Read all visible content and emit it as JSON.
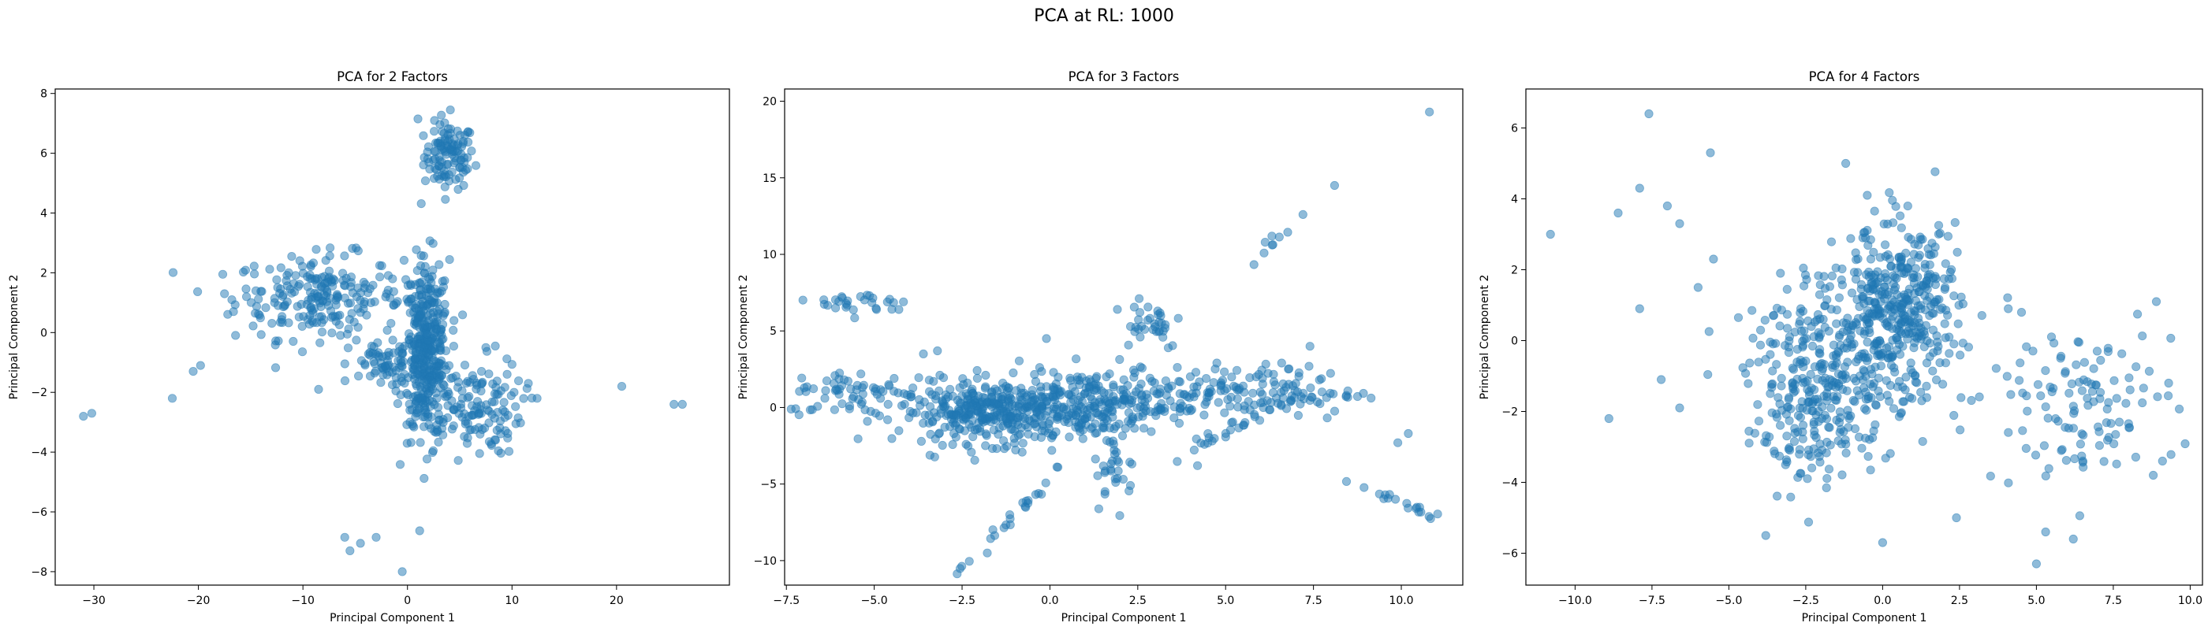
{
  "figure": {
    "suptitle": "PCA at RL: 1000",
    "point_color": "#1f77b4"
  },
  "chart_data": [
    {
      "type": "scatter",
      "title": "PCA for 2 Factors",
      "xlabel": "Principal Component 1",
      "ylabel": "Principal Component 2",
      "xlim": [
        -33.7,
        30.8
      ],
      "ylim": [
        -8.45,
        8.15
      ],
      "xticks": [
        -30,
        -20,
        -10,
        0,
        10,
        20
      ],
      "yticks": [
        -8,
        -6,
        -4,
        -2,
        0,
        2,
        4,
        6,
        8
      ],
      "tick_labels_x": [
        "−30",
        "−20",
        "−10",
        "0",
        "10",
        "20"
      ],
      "tick_labels_y": [
        "−8",
        "−6",
        "−4",
        "−2",
        "0",
        "2",
        "4",
        "6",
        "8"
      ],
      "grid": false,
      "clusters": [
        {
          "cx": 4.0,
          "cy": 5.9,
          "sx": 1.2,
          "sy": 0.55,
          "n": 110
        },
        {
          "cx": -8.5,
          "cy": 1.2,
          "sx": 4.0,
          "sy": 0.7,
          "n": 220
        },
        {
          "cx": 1.8,
          "cy": -0.6,
          "sx": 1.1,
          "sy": 1.5,
          "n": 380
        },
        {
          "cx": 6.0,
          "cy": -2.5,
          "sx": 2.5,
          "sy": 0.8,
          "n": 140
        },
        {
          "cx": -1.5,
          "cy": -1.1,
          "sx": 2.0,
          "sy": 0.4,
          "n": 70
        }
      ],
      "points": [
        [
          -31,
          -2.8
        ],
        [
          -30.2,
          -2.7
        ],
        [
          -22.5,
          -2.2
        ],
        [
          -20.5,
          -1.3
        ],
        [
          -19.8,
          -1.1
        ],
        [
          20.5,
          -1.8
        ],
        [
          25.5,
          -2.4
        ],
        [
          26.3,
          -2.4
        ],
        [
          12.4,
          -2.2
        ],
        [
          10.2,
          -2.0
        ],
        [
          -6,
          -6.85
        ],
        [
          -5.5,
          -7.3
        ],
        [
          -4.5,
          -7.05
        ],
        [
          -3,
          -6.85
        ],
        [
          -0.5,
          -8.0
        ],
        [
          1.0,
          7.15
        ],
        [
          4.1,
          7.45
        ],
        [
          -8.5,
          -1.9
        ],
        [
          7.5,
          -0.5
        ],
        [
          8.4,
          -0.45
        ],
        [
          -17.5,
          1.3
        ],
        [
          -16.8,
          1.1
        ],
        [
          -15.4,
          1.2
        ],
        [
          -14.5,
          1.4
        ]
      ]
    },
    {
      "type": "scatter",
      "title": "PCA for 3 Factors",
      "xlabel": "Principal Component 1",
      "ylabel": "Principal Component 2",
      "xlim": [
        -7.55,
        11.75
      ],
      "ylim": [
        -11.6,
        20.8
      ],
      "xticks": [
        -7.5,
        -5.0,
        -2.5,
        0.0,
        2.5,
        5.0,
        7.5,
        10.0
      ],
      "yticks": [
        -10,
        -5,
        0,
        5,
        10,
        15,
        20
      ],
      "tick_labels_x": [
        "−7.5",
        "−5.0",
        "−2.5",
        "0.0",
        "2.5",
        "5.0",
        "7.5",
        "10.0"
      ],
      "tick_labels_y": [
        "−10",
        "−5",
        "0",
        "5",
        "10",
        "15",
        "20"
      ],
      "grid": false,
      "clusters": [
        {
          "cx": -1.5,
          "cy": -0.3,
          "sx": 1.4,
          "sy": 1.0,
          "n": 380
        },
        {
          "cx": 1.5,
          "cy": 0.3,
          "sx": 1.6,
          "sy": 1.1,
          "n": 260
        },
        {
          "cx": 6.0,
          "cy": 1.0,
          "sx": 1.4,
          "sy": 0.9,
          "n": 120
        },
        {
          "cx": -5.2,
          "cy": 6.8,
          "sx": 0.7,
          "sy": 0.4,
          "n": 28
        },
        {
          "cx": 2.8,
          "cy": 5.6,
          "sx": 0.5,
          "sy": 0.9,
          "n": 35
        },
        {
          "cx": 1.9,
          "cy": -4.0,
          "sx": 0.3,
          "sy": 1.2,
          "n": 30
        },
        {
          "cx": -5.5,
          "cy": 1.0,
          "sx": 1.0,
          "sy": 0.7,
          "n": 60
        }
      ],
      "lines": [
        {
          "x0": -2.6,
          "y0": -10.8,
          "x1": 0.3,
          "y1": -4.0,
          "n": 25
        },
        {
          "x0": 3.5,
          "y0": -3.5,
          "x1": 5.5,
          "y1": -1.0,
          "n": 15
        },
        {
          "x0": 5.5,
          "y0": 8.5,
          "x1": 7.0,
          "y1": 12.4,
          "n": 8
        },
        {
          "x0": 8.5,
          "y0": -4.8,
          "x1": 11.0,
          "y1": -7.2,
          "n": 18
        }
      ],
      "points": [
        [
          10.8,
          19.3
        ],
        [
          8.1,
          14.5
        ],
        [
          7.2,
          12.6
        ],
        [
          10.2,
          -1.7
        ],
        [
          9.9,
          -2.3
        ],
        [
          -3.6,
          3.5
        ],
        [
          -3.2,
          3.7
        ],
        [
          7.4,
          4.0
        ],
        [
          -0.1,
          4.5
        ],
        [
          4.2,
          -3.8
        ],
        [
          -6.1,
          6.5
        ]
      ]
    },
    {
      "type": "scatter",
      "title": "PCA for 4 Factors",
      "xlabel": "Principal Component 1",
      "ylabel": "Principal Component 2",
      "xlim": [
        -11.6,
        10.4
      ],
      "ylim": [
        -6.9,
        7.1
      ],
      "xticks": [
        -10.0,
        -7.5,
        -5.0,
        -2.5,
        0.0,
        2.5,
        5.0,
        7.5,
        10.0
      ],
      "yticks": [
        -6,
        -4,
        -2,
        0,
        2,
        4,
        6
      ],
      "tick_labels_x": [
        "−10.0",
        "−7.5",
        "−5.0",
        "−2.5",
        "0.0",
        "2.5",
        "5.0",
        "7.5",
        "10.0"
      ],
      "tick_labels_y": [
        "−6",
        "−4",
        "−2",
        "0",
        "2",
        "4",
        "6"
      ],
      "grid": false,
      "clusters": [
        {
          "cx": 0.5,
          "cy": 0.8,
          "sx": 1.0,
          "sy": 1.2,
          "n": 420
        },
        {
          "cx": -2.0,
          "cy": -1.3,
          "sx": 1.2,
          "sy": 1.3,
          "n": 330
        },
        {
          "cx": 6.3,
          "cy": -1.8,
          "sx": 1.6,
          "sy": 1.1,
          "n": 120
        }
      ],
      "points": [
        [
          -10.8,
          3.0
        ],
        [
          -7.6,
          6.4
        ],
        [
          -5.6,
          5.3
        ],
        [
          -5.5,
          2.3
        ],
        [
          -6.6,
          3.3
        ],
        [
          -7.9,
          4.3
        ],
        [
          -7.0,
          3.8
        ],
        [
          -8.6,
          3.6
        ],
        [
          -6.0,
          1.5
        ],
        [
          -7.9,
          0.9
        ],
        [
          -7.2,
          -1.1
        ],
        [
          -6.6,
          -1.9
        ],
        [
          -8.9,
          -2.2
        ],
        [
          -1.2,
          5.0
        ],
        [
          -0.5,
          4.1
        ],
        [
          -3.8,
          -5.5
        ],
        [
          0.0,
          -5.7
        ],
        [
          5.0,
          -6.3
        ],
        [
          5.3,
          -5.4
        ],
        [
          6.2,
          -5.6
        ],
        [
          2.4,
          -5.0
        ],
        [
          8.9,
          1.1
        ],
        [
          9.3,
          -1.2
        ],
        [
          8.8,
          -3.8
        ],
        [
          9.1,
          -3.4
        ]
      ]
    }
  ]
}
